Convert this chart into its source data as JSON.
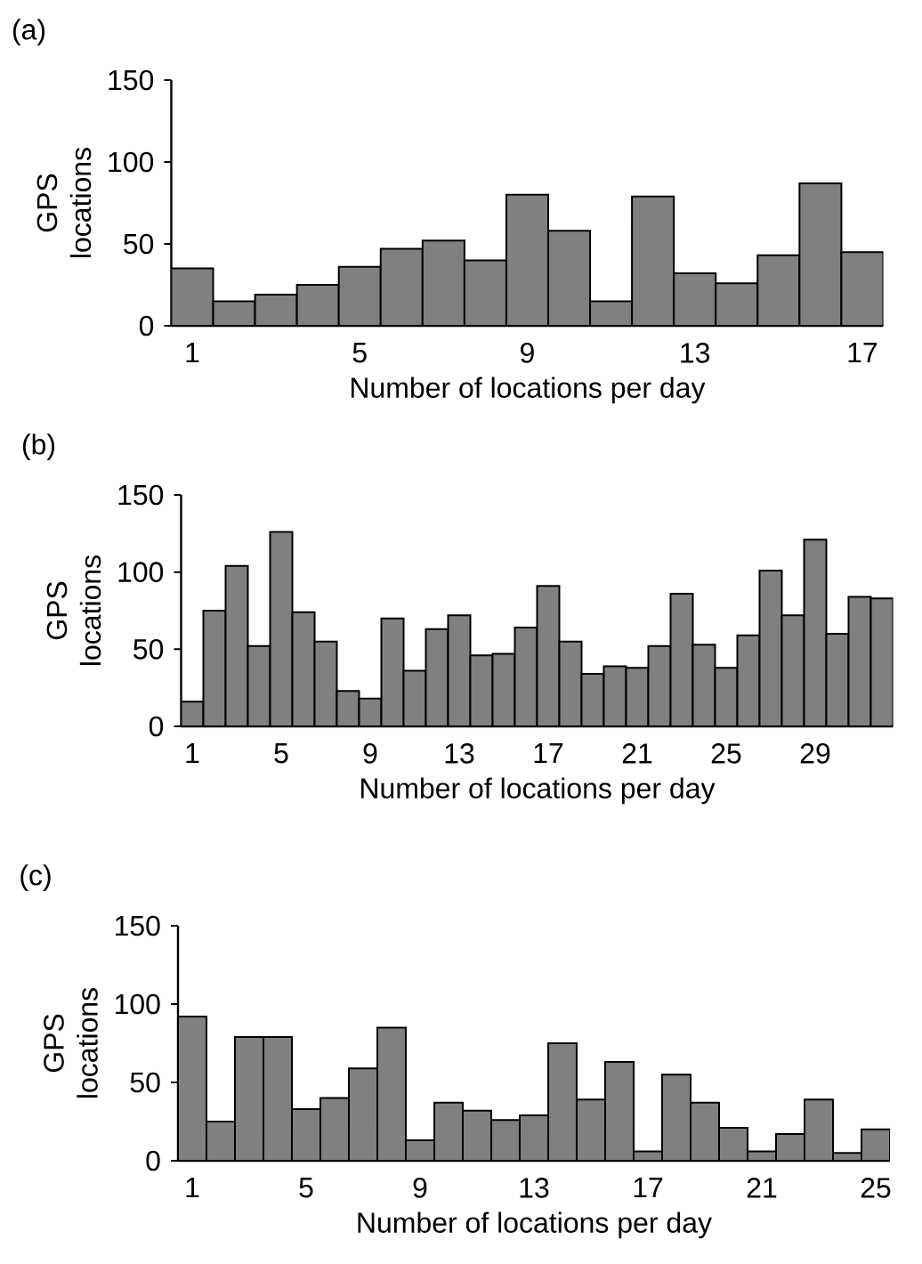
{
  "chart_data": [
    {
      "type": "bar",
      "title": "(a)",
      "xlabel": "Number of locations per day",
      "ylabel": "GPS locations",
      "color": "#808080",
      "categories": [
        "1",
        null,
        null,
        null,
        "5",
        null,
        null,
        null,
        "9",
        null,
        null,
        null,
        "13",
        null,
        null,
        null,
        "17"
      ],
      "values": [
        35,
        15,
        19,
        25,
        36,
        47,
        52,
        40,
        80,
        58,
        15,
        79,
        32,
        26,
        43,
        87,
        45
      ],
      "ylim": [
        0,
        150
      ],
      "yticks": [
        0,
        50,
        100,
        150
      ],
      "grid": false
    },
    {
      "type": "bar",
      "title": "(b)",
      "xlabel": "Number of locations per day",
      "ylabel": "GPS locations",
      "color": "#808080",
      "categories": [
        "1",
        null,
        null,
        null,
        "5",
        null,
        null,
        null,
        "9",
        null,
        null,
        null,
        "13",
        null,
        null,
        null,
        "17",
        null,
        null,
        null,
        "21",
        null,
        null,
        null,
        "25",
        null,
        null,
        null,
        "29",
        null,
        null,
        null
      ],
      "values": [
        16,
        75,
        104,
        52,
        126,
        74,
        55,
        23,
        18,
        70,
        36,
        63,
        72,
        46,
        47,
        64,
        91,
        55,
        34,
        39,
        38,
        52,
        86,
        53,
        38,
        59,
        101,
        72,
        121,
        60,
        84,
        83
      ],
      "ylim": [
        0,
        150
      ],
      "yticks": [
        0,
        50,
        100,
        150
      ],
      "grid": false
    },
    {
      "type": "bar",
      "title": "(c)",
      "xlabel": "Number of locations per day",
      "ylabel": "GPS locations",
      "color": "#808080",
      "categories": [
        "1",
        null,
        null,
        null,
        "5",
        null,
        null,
        null,
        "9",
        null,
        null,
        null,
        "13",
        null,
        null,
        null,
        "17",
        null,
        null,
        null,
        "21",
        null,
        null,
        null,
        "25"
      ],
      "values": [
        92,
        25,
        79,
        79,
        33,
        40,
        59,
        85,
        13,
        37,
        32,
        26,
        29,
        75,
        39,
        63,
        6,
        55,
        37,
        21,
        6,
        17,
        39,
        5,
        20
      ],
      "ylim": [
        0,
        150
      ],
      "yticks": [
        0,
        50,
        100,
        150
      ],
      "grid": false
    }
  ]
}
